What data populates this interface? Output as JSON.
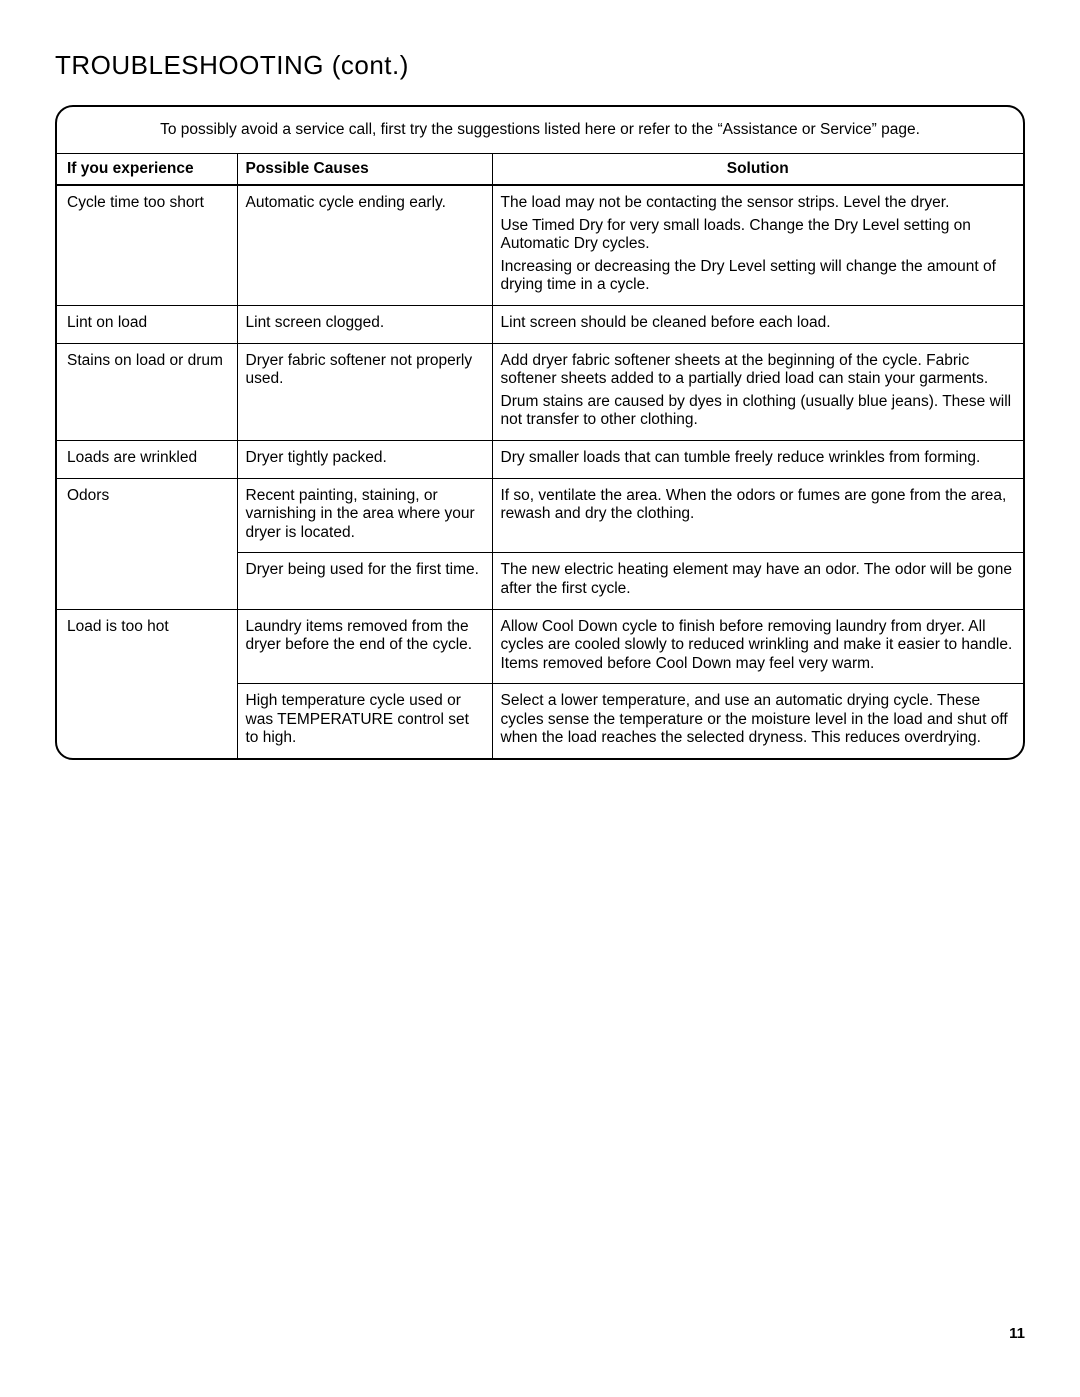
{
  "title": "TROUBLESHOOTING (cont.)",
  "intro": "To possibly avoid a service call, ﬁrst try the suggestions listed here or refer to the “Assistance or Service” page.",
  "headers": {
    "experience": "If you experience",
    "causes": "Possible Causes",
    "solution": "Solution"
  },
  "rows": [
    {
      "experience": "Cycle time too short",
      "cause": "Automatic cycle ending early.",
      "solutions": [
        "The load may not be contacting the sensor strips. Level the dryer.",
        "Use Timed Dry for very small loads. Change the Dry Level setting on Automatic Dry cycles.",
        "Increasing or decreasing the Dry Level setting will change the amount of drying time in a cycle."
      ]
    },
    {
      "experience": "Lint on load",
      "cause": "Lint screen clogged.",
      "solutions": [
        "Lint screen should be cleaned before each load."
      ]
    },
    {
      "experience": "Stains on load or drum",
      "cause": "Dryer fabric softener not properly used.",
      "solutions": [
        "Add dryer fabric softener sheets at the beginning of the cycle. Fabric softener sheets added to a partially dried load can stain your garments.",
        "Drum stains are caused by dyes in clothing (usually blue jeans). These will not transfer to other clothing."
      ]
    },
    {
      "experience": "Loads are wrinkled",
      "cause": "Dryer tightly packed.",
      "solutions": [
        "Dry smaller loads that can tumble freely reduce wrinkles from forming."
      ]
    },
    {
      "experience": "Odors",
      "cause": "Recent painting, staining, or varnishing in the area where your dryer is located.",
      "solutions": [
        "If so, ventilate the area. When the odors or fumes are gone from the area, rewash and dry the clothing."
      ]
    },
    {
      "experience": "",
      "cause": "Dryer being used for the ﬁrst time.",
      "solutions": [
        "The new electric heating element may have an odor. The odor will be gone after the ﬁrst cycle."
      ]
    },
    {
      "experience": "Load is too hot",
      "cause": "Laundry items removed from the dryer before the end of the cycle.",
      "solutions": [
        "Allow Cool Down cycle to ﬁnish before removing laundry from dryer. All cycles are cooled slowly to reduced wrinkling and make it easier to handle. Items removed before Cool Down may feel very warm."
      ]
    },
    {
      "experience": "",
      "cause": "High temperature cycle used or was TEMPERATURE control set to high.",
      "solutions": [
        "Select a lower temperature, and use an automatic drying cycle. These cycles sense the temperature or the moisture level in the load and shut off when the load reaches the selected dryness. This reduces overdrying."
      ]
    }
  ],
  "pageNumber": "11"
}
